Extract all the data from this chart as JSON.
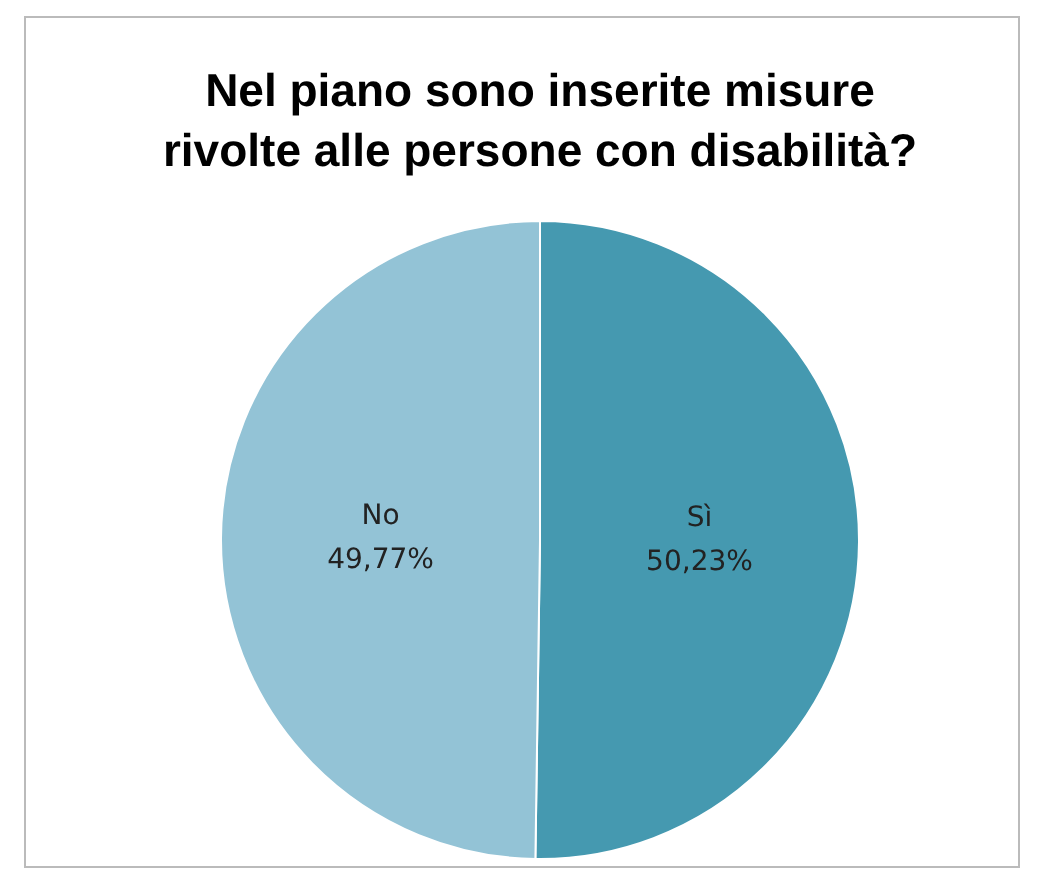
{
  "chart_data": {
    "type": "pie",
    "title": "Nel piano sono inserite misure rivolte alle persone con disabilità?",
    "categories": [
      "Sì",
      "No"
    ],
    "values": [
      50.23,
      49.77
    ],
    "value_labels": [
      "50,23%",
      "49,77%"
    ],
    "colors": [
      "#4599b0",
      "#93c3d6"
    ],
    "legend": false
  }
}
